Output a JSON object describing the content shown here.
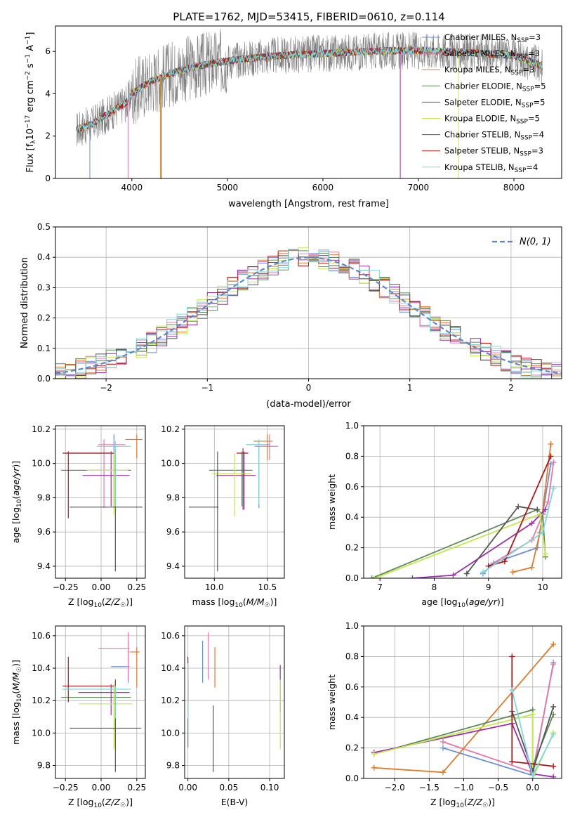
{
  "figure_title": "PLATE=1762, MJD=53415, FIBERID=0610, z=0.114",
  "palette": [
    "#6a8fd9",
    "#e877a8",
    "#e07b2a",
    "#5b8a5b",
    "#9b2fae",
    "#c5e84a",
    "#555555",
    "#b01818",
    "#7fd8dc"
  ],
  "chart_data": [
    {
      "type": "line",
      "id": "spectrum",
      "xlabel": "wavelength [Angstrom, rest frame]",
      "ylabel": "Flux [f",
      "xlim": [
        3200,
        8500
      ],
      "ylim": [
        0,
        7.2
      ],
      "xticks": [
        4000,
        5000,
        6000,
        7000,
        8000
      ],
      "yticks": [
        0,
        2,
        4,
        6
      ],
      "legend_position": "top-right",
      "series": [
        {
          "name": "Chabrier MILES, N",
          "tag": "SSP",
          "val": "=3"
        },
        {
          "name": "Salpeter MILES, N",
          "tag": "SSP",
          "val": "=3"
        },
        {
          "name": "Kroupa MILES, N",
          "tag": "SSP",
          "val": "=3"
        },
        {
          "name": "Chabrier ELODIE, N",
          "tag": "SSP",
          "val": "=5"
        },
        {
          "name": "Salpeter ELODIE, N",
          "tag": "SSP",
          "val": "=5"
        },
        {
          "name": "Kroupa ELODIE, N",
          "tag": "SSP",
          "val": "=5"
        },
        {
          "name": "Chabrier STELIB, N",
          "tag": "SSP",
          "val": "=4"
        },
        {
          "name": "Salpeter STELIB, N",
          "tag": "SSP",
          "val": "=3"
        },
        {
          "name": "Kroupa STELIB, N",
          "tag": "SSP",
          "val": "=4"
        }
      ],
      "continuum": [
        [
          3420,
          2.3
        ],
        [
          3600,
          2.6
        ],
        [
          3800,
          3.2
        ],
        [
          3950,
          3.6
        ],
        [
          4000,
          4.0
        ],
        [
          4200,
          4.6
        ],
        [
          4500,
          5.1
        ],
        [
          4800,
          5.4
        ],
        [
          5000,
          5.55
        ],
        [
          5500,
          5.8
        ],
        [
          6000,
          5.9
        ],
        [
          6500,
          6.0
        ],
        [
          7000,
          6.05
        ],
        [
          7500,
          5.95
        ],
        [
          8000,
          5.8
        ],
        [
          8300,
          5.3
        ]
      ]
    },
    {
      "type": "step",
      "id": "residuals",
      "xlabel": "(data-model)/error",
      "ylabel": "Normed distribution",
      "xlim": [
        -2.5,
        2.5
      ],
      "ylim": [
        0,
        0.5
      ],
      "xticks": [
        -2,
        -1,
        0,
        1,
        2
      ],
      "yticks": [
        0.0,
        0.1,
        0.2,
        0.3,
        0.4,
        0.5
      ],
      "grid": true,
      "legend_position": "top-right",
      "gaussian_label": "(0, 1)",
      "gaussian_symbol": "N",
      "bin_width": 0.1
    },
    {
      "type": "errorbar",
      "id": "age-vs-Z",
      "xlabel": "Z [log",
      "ylabel": "age  [log",
      "xlim": [
        -0.32,
        0.31
      ],
      "ylim": [
        9.33,
        10.22
      ],
      "xticks": [
        -0.25,
        0.0,
        0.25
      ],
      "yticks": [
        9.4,
        9.6,
        9.8,
        10.0,
        10.2
      ],
      "grid": true,
      "points": [
        {
          "x": 0.09,
          "xl": -0.25,
          "xh": 0.09,
          "y": 10.06,
          "yl": 9.74,
          "yh": 10.17,
          "c": 0
        },
        {
          "x": 0.02,
          "xl": -0.02,
          "xh": 0.17,
          "y": 10.11,
          "yl": 9.74,
          "yh": 10.14,
          "c": 1
        },
        {
          "x": 0.25,
          "xl": 0.17,
          "xh": 0.29,
          "y": 10.14,
          "yl": 10.03,
          "yh": 10.17,
          "c": 2
        },
        {
          "x": 0.1,
          "xl": -0.28,
          "xh": 0.21,
          "y": 9.96,
          "yl": 9.76,
          "yh": 10.08,
          "c": 3
        },
        {
          "x": 0.07,
          "xl": -0.13,
          "xh": 0.2,
          "y": 9.93,
          "yl": 9.75,
          "yh": 10.07,
          "c": 4
        },
        {
          "x": 0.09,
          "xl": -0.1,
          "xh": 0.19,
          "y": 9.96,
          "yl": 9.7,
          "yh": 10.07,
          "c": 5
        },
        {
          "x": 0.1,
          "xl": -0.22,
          "xh": 0.29,
          "y": 9.745,
          "yl": 9.37,
          "yh": 10.06,
          "c": 6
        },
        {
          "x": -0.23,
          "xl": -0.27,
          "xh": 0.09,
          "y": 10.06,
          "yl": 9.68,
          "yh": 10.07,
          "c": 7
        },
        {
          "x": 0.1,
          "xl": -0.03,
          "xh": 0.21,
          "y": 10.1,
          "yl": 9.75,
          "yh": 10.13,
          "c": 8
        }
      ]
    },
    {
      "type": "errorbar",
      "id": "age-vs-mass",
      "xlabel": "mass [log",
      "ylabel": "",
      "xlim": [
        9.72,
        10.66
      ],
      "ylim": [
        9.33,
        10.22
      ],
      "xticks": [
        10.0,
        10.5
      ],
      "yticks": [
        9.4,
        9.6,
        9.8,
        10.0,
        10.2
      ],
      "grid": true,
      "points": [
        {
          "x": 10.42,
          "xl": 10.3,
          "xh": 10.52,
          "y": 10.11,
          "yl": 9.74,
          "yh": 10.13,
          "c": 0
        },
        {
          "x": 10.52,
          "xl": 10.38,
          "xh": 10.6,
          "y": 10.1,
          "yl": 10.02,
          "yh": 10.17,
          "c": 1
        },
        {
          "x": 10.5,
          "xl": 10.37,
          "xh": 10.55,
          "y": 10.13,
          "yl": 10.02,
          "yh": 10.17,
          "c": 2
        },
        {
          "x": 10.26,
          "xl": 9.95,
          "xh": 10.36,
          "y": 9.96,
          "yl": 9.75,
          "yh": 10.07,
          "c": 3
        },
        {
          "x": 10.27,
          "xl": 10.02,
          "xh": 10.39,
          "y": 9.93,
          "yl": 9.73,
          "yh": 10.09,
          "c": 4
        },
        {
          "x": 10.19,
          "xl": 9.98,
          "xh": 10.35,
          "y": 9.94,
          "yl": 9.69,
          "yh": 10.06,
          "c": 5
        },
        {
          "x": 10.03,
          "xl": 9.76,
          "xh": 10.04,
          "y": 9.745,
          "yl": 9.37,
          "yh": 10.07,
          "c": 6
        },
        {
          "x": 10.28,
          "xl": 10.21,
          "xh": 10.32,
          "y": 10.06,
          "yl": 9.73,
          "yh": 10.07,
          "c": 7
        },
        {
          "x": 10.42,
          "xl": 10.3,
          "xh": 10.5,
          "y": 10.11,
          "yl": 9.76,
          "yh": 10.14,
          "c": 8
        }
      ]
    },
    {
      "type": "line",
      "id": "massweight-vs-age",
      "xlabel": "age  [log",
      "ylabel": "mass weight",
      "xlim": [
        6.7,
        10.35
      ],
      "ylim": [
        0.0,
        1.0
      ],
      "xticks": [
        7,
        8,
        9,
        10
      ],
      "yticks": [
        0.0,
        0.2,
        0.4,
        0.6,
        0.8,
        1.0
      ],
      "grid": true,
      "lines": [
        {
          "c": 0,
          "pts": [
            [
              8.9,
              0.03
            ],
            [
              9.1,
              0.1
            ],
            [
              9.9,
              0.2
            ],
            [
              10.15,
              0.75
            ]
          ]
        },
        {
          "c": 1,
          "pts": [
            [
              9.0,
              0.08
            ],
            [
              9.8,
              0.25
            ],
            [
              10.1,
              0.5
            ],
            [
              10.2,
              0.76
            ]
          ]
        },
        {
          "c": 2,
          "pts": [
            [
              9.45,
              0.04
            ],
            [
              9.8,
              0.07
            ],
            [
              9.95,
              0.3
            ],
            [
              10.15,
              0.88
            ]
          ]
        },
        {
          "c": 3,
          "pts": [
            [
              6.85,
              0.0
            ],
            [
              9.9,
              0.45
            ],
            [
              10.0,
              0.42
            ],
            [
              10.05,
              0.14
            ]
          ]
        },
        {
          "c": 4,
          "pts": [
            [
              7.6,
              0.0
            ],
            [
              8.35,
              0.02
            ],
            [
              9.8,
              0.36
            ],
            [
              10.05,
              0.45
            ]
          ]
        },
        {
          "c": 5,
          "pts": [
            [
              6.9,
              0.0
            ],
            [
              9.95,
              0.42
            ],
            [
              10.05,
              0.16
            ]
          ]
        },
        {
          "c": 6,
          "pts": [
            [
              8.6,
              0.03
            ],
            [
              9.55,
              0.47
            ],
            [
              9.9,
              0.45
            ]
          ]
        },
        {
          "c": 7,
          "pts": [
            [
              9.0,
              0.08
            ],
            [
              9.3,
              0.11
            ],
            [
              10.15,
              0.8
            ]
          ]
        },
        {
          "c": 8,
          "pts": [
            [
              8.9,
              0.04
            ],
            [
              10.0,
              0.3
            ],
            [
              10.2,
              0.59
            ]
          ]
        }
      ]
    },
    {
      "type": "errorbar",
      "id": "mass-vs-Z",
      "xlabel": "Z [log",
      "ylabel": "mass [log",
      "xlim": [
        -0.32,
        0.31
      ],
      "ylim": [
        9.72,
        10.66
      ],
      "xticks": [
        -0.25,
        0.0,
        0.25
      ],
      "yticks": [
        9.8,
        10.0,
        10.2,
        10.4,
        10.6
      ],
      "grid": true,
      "points": [
        {
          "x": 0.19,
          "xl": 0.07,
          "xh": 0.2,
          "y": 10.41,
          "yl": 10.31,
          "yh": 10.57,
          "c": 0
        },
        {
          "x": 0.19,
          "xl": -0.02,
          "xh": 0.2,
          "y": 10.52,
          "yl": 10.33,
          "yh": 10.62,
          "c": 1
        },
        {
          "x": 0.25,
          "xl": 0.2,
          "xh": 0.27,
          "y": 10.5,
          "yl": 10.28,
          "yh": 10.53,
          "c": 2
        },
        {
          "x": 0.1,
          "xl": -0.28,
          "xh": 0.21,
          "y": 10.22,
          "yl": 9.91,
          "yh": 10.32,
          "c": 3
        },
        {
          "x": 0.07,
          "xl": -0.16,
          "xh": 0.2,
          "y": 10.25,
          "yl": 10.11,
          "yh": 10.3,
          "c": 4
        },
        {
          "x": 0.09,
          "xl": -0.16,
          "xh": 0.22,
          "y": 10.18,
          "yl": 9.9,
          "yh": 10.3,
          "c": 5
        },
        {
          "x": 0.1,
          "xl": -0.22,
          "xh": 0.28,
          "y": 10.03,
          "yl": 9.76,
          "yh": 10.33,
          "c": 6
        },
        {
          "x": -0.23,
          "xl": -0.27,
          "xh": 0.09,
          "y": 10.29,
          "yl": 10.19,
          "yh": 10.47,
          "c": 7
        },
        {
          "x": 0.1,
          "xl": -0.27,
          "xh": 0.21,
          "y": 10.27,
          "yl": 10.09,
          "yh": 10.29,
          "c": 8
        }
      ]
    },
    {
      "type": "errorbar",
      "id": "mass-vs-ebv",
      "xlabel": "E(B-V)",
      "ylabel": "",
      "xlim": [
        -0.004,
        0.118
      ],
      "ylim": [
        9.72,
        10.66
      ],
      "xticks": [
        0.0,
        0.05,
        0.1
      ],
      "yticks": [
        9.8,
        10.0,
        10.2,
        10.4,
        10.6
      ],
      "grid": true,
      "points": [
        {
          "x": 0.018,
          "y": 10.41,
          "yl": 10.31,
          "yh": 10.57,
          "c": 0
        },
        {
          "x": 0.025,
          "y": 10.52,
          "yl": 10.33,
          "yh": 10.62,
          "c": 1
        },
        {
          "x": 0.033,
          "y": 10.5,
          "yl": 10.28,
          "yh": 10.53,
          "c": 2
        },
        {
          "x": 0.0,
          "y": 10.22,
          "yl": 9.91,
          "yh": 10.32,
          "c": 3
        },
        {
          "x": 0.113,
          "y": 10.3,
          "yl": 10.13,
          "yh": 10.42,
          "c": 4
        },
        {
          "x": 0.113,
          "y": 10.18,
          "yl": 9.9,
          "yh": 10.33,
          "c": 5
        },
        {
          "x": 0.031,
          "y": 10.03,
          "yl": 9.76,
          "yh": 10.17,
          "c": 6
        },
        {
          "x": 0.0,
          "y": 10.29,
          "yl": 10.19,
          "yh": 10.47,
          "c": 7
        },
        {
          "x": 0.0,
          "y": 10.27,
          "yl": 10.09,
          "yh": 10.43,
          "c": 8
        }
      ]
    },
    {
      "type": "line",
      "id": "massweight-vs-Z",
      "xlabel": "Z [log",
      "ylabel": "mass weight",
      "xlim": [
        -2.45,
        0.42
      ],
      "ylim": [
        0.0,
        1.0
      ],
      "xticks": [
        -2.0,
        -1.5,
        -1.0,
        -0.5,
        0.0
      ],
      "yticks": [
        0.0,
        0.2,
        0.4,
        0.6,
        0.8,
        1.0
      ],
      "grid": true,
      "lines": [
        {
          "c": 0,
          "pts": [
            [
              -1.3,
              0.2
            ],
            [
              0.0,
              0.02
            ],
            [
              0.3,
              0.76
            ]
          ]
        },
        {
          "c": 1,
          "pts": [
            [
              -1.3,
              0.24
            ],
            [
              0.0,
              0.04
            ],
            [
              0.3,
              0.75
            ]
          ]
        },
        {
          "c": 2,
          "pts": [
            [
              -2.3,
              0.07
            ],
            [
              -1.3,
              0.04
            ],
            [
              0.3,
              0.88
            ]
          ]
        },
        {
          "c": 3,
          "pts": [
            [
              -2.3,
              0.16
            ],
            [
              0.0,
              0.45
            ],
            [
              0.0,
              0.08
            ],
            [
              0.3,
              0.42
            ]
          ]
        },
        {
          "c": 4,
          "pts": [
            [
              -2.3,
              0.17
            ],
            [
              -0.3,
              0.36
            ],
            [
              0.0,
              0.03
            ],
            [
              0.3,
              0.01
            ]
          ]
        },
        {
          "c": 5,
          "pts": [
            [
              -2.3,
              0.16
            ],
            [
              0.0,
              0.42
            ],
            [
              0.0,
              0.0
            ],
            [
              0.3,
              0.3
            ]
          ]
        },
        {
          "c": 6,
          "pts": [
            [
              -0.3,
              0.44
            ],
            [
              0.0,
              0.05
            ],
            [
              0.3,
              0.47
            ]
          ]
        },
        {
          "c": 7,
          "pts": [
            [
              -0.3,
              0.8
            ],
            [
              -0.3,
              0.11
            ],
            [
              0.3,
              0.08
            ]
          ]
        },
        {
          "c": 8,
          "pts": [
            [
              -0.3,
              0.58
            ],
            [
              0.0,
              0.02
            ],
            [
              0.3,
              0.29
            ]
          ]
        }
      ]
    }
  ]
}
